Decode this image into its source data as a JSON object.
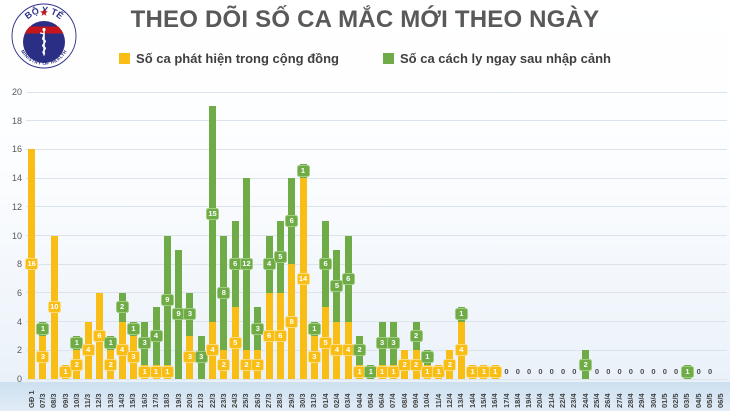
{
  "logo": {
    "top_text": "BỘ Y TẾ",
    "bottom_text": "MINISTRY OF HEALTH"
  },
  "chart_data": {
    "type": "bar",
    "stacked": true,
    "title": "THEO DÕI SỐ CA MẮC MỚI THEO NGÀY",
    "xlabel": "",
    "ylabel": "",
    "ylim": [
      0,
      20
    ],
    "yticks": [
      0,
      2,
      4,
      6,
      8,
      10,
      12,
      14,
      16,
      18,
      20
    ],
    "grid": true,
    "legend_position": "top",
    "zero_marker": "0",
    "categories": [
      "GĐ 1",
      "07/3",
      "08/3",
      "09/3",
      "10/3",
      "11/3",
      "12/3",
      "13/3",
      "14/3",
      "15/3",
      "16/3",
      "17/3",
      "18/3",
      "19/3",
      "20/3",
      "21/3",
      "22/3",
      "23/3",
      "24/3",
      "25/3",
      "26/3",
      "27/3",
      "28/3",
      "29/3",
      "30/3",
      "31/3",
      "01/4",
      "02/4",
      "03/4",
      "04/4",
      "05/4",
      "06/4",
      "07/4",
      "08/4",
      "09/4",
      "10/4",
      "11/4",
      "12/4",
      "13/4",
      "14/4",
      "15/4",
      "16/4",
      "17/4",
      "18/4",
      "19/4",
      "20/4",
      "21/4",
      "22/4",
      "23/4",
      "24/4",
      "25/4",
      "26/4",
      "27/4",
      "28/4",
      "29/4",
      "30/4",
      "01/5",
      "02/5",
      "03/5",
      "04/5",
      "05/5",
      "06/5"
    ],
    "series": [
      {
        "name": "Số ca phát hiện trong cộng đồng",
        "color": "#F9BE15",
        "label_border": "#FCDC82",
        "values": [
          16,
          3,
          10,
          1,
          2,
          4,
          6,
          2,
          4,
          3,
          1,
          1,
          1,
          0,
          3,
          0,
          4,
          2,
          5,
          2,
          2,
          6,
          6,
          8,
          14,
          3,
          5,
          4,
          4,
          1,
          0,
          1,
          1,
          2,
          2,
          1,
          1,
          2,
          4,
          1,
          1,
          1,
          0,
          0,
          0,
          0,
          0,
          0,
          0,
          0,
          0,
          0,
          0,
          0,
          0,
          0,
          0,
          0,
          0,
          0,
          0,
          null
        ]
      },
      {
        "name": "Số ca cách ly ngay sau nhập cảnh",
        "color": "#6FAC47",
        "label_border": "#A2CC7F",
        "values": [
          0,
          1,
          0,
          0,
          1,
          0,
          0,
          1,
          2,
          1,
          3,
          4,
          9,
          9,
          3,
          3,
          15,
          8,
          6,
          12,
          3,
          4,
          5,
          6,
          1,
          1,
          6,
          5,
          6,
          2,
          1,
          3,
          3,
          0,
          2,
          1,
          0,
          0,
          1,
          0,
          0,
          0,
          0,
          0,
          0,
          0,
          0,
          0,
          0,
          2,
          0,
          0,
          0,
          0,
          0,
          0,
          0,
          0,
          1,
          0,
          0,
          null
        ]
      }
    ]
  },
  "colors": {
    "title": "#595959",
    "legend_text": "#3F3F3F",
    "axis_label": "#595959",
    "x_label": "#3F3F3F",
    "grid": "#DBE3EC",
    "zero": "#4D4D4D",
    "bar_label_text": "#FFFFFF",
    "logo_navy": "#2B2E85",
    "logo_red": "#C4161C"
  }
}
